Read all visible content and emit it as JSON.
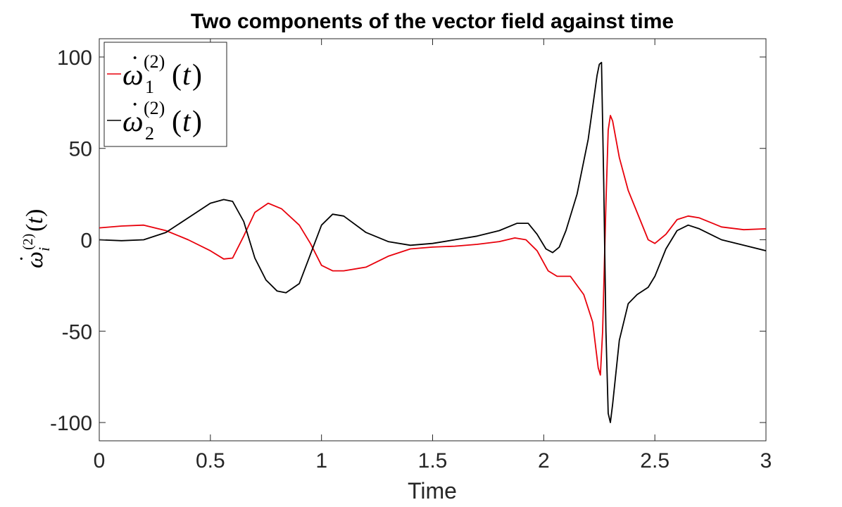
{
  "chart_data": {
    "type": "line",
    "title": "Two components of the vector field against time",
    "xlabel": "Time",
    "ylabel": "ω̇_i^(2)(t)",
    "xlim": [
      0,
      3
    ],
    "ylim": [
      -110,
      110
    ],
    "xticks": [
      0,
      0.5,
      1,
      1.5,
      2,
      2.5,
      3
    ],
    "xtick_labels": [
      "0",
      "0.5",
      "1",
      "1.5",
      "2",
      "2.5",
      "3"
    ],
    "yticks": [
      -100,
      -50,
      0,
      50,
      100
    ],
    "ytick_labels": [
      "-100",
      "-50",
      "0",
      "50",
      "100"
    ],
    "grid": false,
    "legend_position": "top-left",
    "series": [
      {
        "name": "ω̇_1^(2)(t)",
        "color": "#e8000b",
        "points": [
          [
            0,
            6.5
          ],
          [
            0.1,
            7.5
          ],
          [
            0.2,
            8
          ],
          [
            0.3,
            5
          ],
          [
            0.4,
            0
          ],
          [
            0.5,
            -6
          ],
          [
            0.56,
            -10.5
          ],
          [
            0.6,
            -10
          ],
          [
            0.65,
            2
          ],
          [
            0.7,
            15
          ],
          [
            0.76,
            20
          ],
          [
            0.82,
            17
          ],
          [
            0.9,
            8
          ],
          [
            0.95,
            -2
          ],
          [
            1.0,
            -14
          ],
          [
            1.05,
            -17
          ],
          [
            1.1,
            -17
          ],
          [
            1.2,
            -15
          ],
          [
            1.3,
            -9
          ],
          [
            1.4,
            -5
          ],
          [
            1.5,
            -4
          ],
          [
            1.6,
            -3.5
          ],
          [
            1.7,
            -2.5
          ],
          [
            1.8,
            -1
          ],
          [
            1.87,
            1
          ],
          [
            1.92,
            0
          ],
          [
            1.97,
            -6
          ],
          [
            2.02,
            -17
          ],
          [
            2.06,
            -20
          ],
          [
            2.12,
            -20
          ],
          [
            2.18,
            -30
          ],
          [
            2.22,
            -45
          ],
          [
            2.245,
            -70
          ],
          [
            2.255,
            -74
          ],
          [
            2.265,
            -50
          ],
          [
            2.28,
            20
          ],
          [
            2.29,
            60
          ],
          [
            2.3,
            68
          ],
          [
            2.31,
            65
          ],
          [
            2.34,
            45
          ],
          [
            2.38,
            27
          ],
          [
            2.43,
            12
          ],
          [
            2.47,
            0
          ],
          [
            2.5,
            -2
          ],
          [
            2.55,
            3
          ],
          [
            2.6,
            11
          ],
          [
            2.65,
            13
          ],
          [
            2.7,
            12
          ],
          [
            2.8,
            7
          ],
          [
            2.9,
            5.5
          ],
          [
            3.0,
            6
          ]
        ]
      },
      {
        "name": "ω̇_2^(2)(t)",
        "color": "#000000",
        "points": [
          [
            0,
            0
          ],
          [
            0.1,
            -0.5
          ],
          [
            0.2,
            0
          ],
          [
            0.3,
            4
          ],
          [
            0.4,
            12
          ],
          [
            0.5,
            20
          ],
          [
            0.56,
            22
          ],
          [
            0.6,
            21
          ],
          [
            0.65,
            10
          ],
          [
            0.7,
            -10
          ],
          [
            0.75,
            -22
          ],
          [
            0.8,
            -28
          ],
          [
            0.84,
            -29
          ],
          [
            0.9,
            -24
          ],
          [
            0.95,
            -8
          ],
          [
            1.0,
            8
          ],
          [
            1.05,
            14
          ],
          [
            1.1,
            13
          ],
          [
            1.2,
            4
          ],
          [
            1.3,
            -1
          ],
          [
            1.4,
            -3
          ],
          [
            1.5,
            -2
          ],
          [
            1.6,
            0
          ],
          [
            1.7,
            2
          ],
          [
            1.8,
            5
          ],
          [
            1.88,
            9
          ],
          [
            1.93,
            9
          ],
          [
            1.97,
            3
          ],
          [
            2.01,
            -5
          ],
          [
            2.04,
            -7
          ],
          [
            2.07,
            -4
          ],
          [
            2.1,
            5
          ],
          [
            2.15,
            25
          ],
          [
            2.2,
            55
          ],
          [
            2.24,
            90
          ],
          [
            2.25,
            96
          ],
          [
            2.26,
            97
          ],
          [
            2.27,
            30
          ],
          [
            2.28,
            -50
          ],
          [
            2.29,
            -95
          ],
          [
            2.3,
            -100
          ],
          [
            2.31,
            -90
          ],
          [
            2.34,
            -55
          ],
          [
            2.38,
            -35
          ],
          [
            2.42,
            -30
          ],
          [
            2.47,
            -26
          ],
          [
            2.5,
            -20
          ],
          [
            2.55,
            -5
          ],
          [
            2.6,
            5
          ],
          [
            2.65,
            8
          ],
          [
            2.7,
            6
          ],
          [
            2.8,
            0
          ],
          [
            2.9,
            -3
          ],
          [
            3.0,
            -6
          ]
        ]
      }
    ]
  }
}
